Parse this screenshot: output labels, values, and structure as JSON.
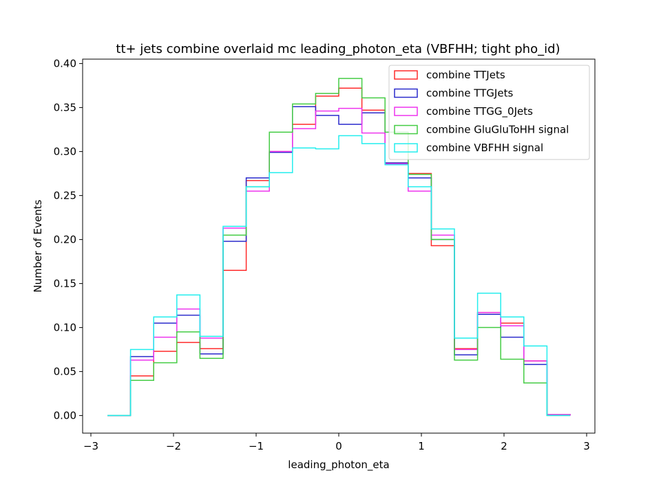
{
  "chart_data": {
    "type": "step-histogram",
    "title": "tt+ jets combine overlaid mc leading_photon_eta (VBFHH; tight pho_id)",
    "xlabel": "leading_photon_eta",
    "ylabel": "Number of Events",
    "xlim": [
      -3.1,
      3.1
    ],
    "ylim": [
      -0.02,
      0.405
    ],
    "xticks": [
      -3,
      -2,
      -1,
      0,
      1,
      2,
      3
    ],
    "xtick_labels": [
      "−3",
      "−2",
      "−1",
      "0",
      "1",
      "2",
      "3"
    ],
    "yticks": [
      0.0,
      0.05,
      0.1,
      0.15,
      0.2,
      0.25,
      0.3,
      0.35,
      0.4
    ],
    "ytick_labels": [
      "0.00",
      "0.05",
      "0.10",
      "0.15",
      "0.20",
      "0.25",
      "0.30",
      "0.35",
      "0.40"
    ],
    "grid": false,
    "legend_position": "top-right",
    "bin_edges": [
      -2.8,
      -2.52,
      -2.24,
      -1.96,
      -1.68,
      -1.4,
      -1.12,
      -0.84,
      -0.56,
      -0.28,
      0.0,
      0.28,
      0.56,
      0.84,
      1.12,
      1.4,
      1.68,
      1.96,
      2.24,
      2.52,
      2.8
    ],
    "series": [
      {
        "name": "combine TTJets",
        "color": "#ff2a2a",
        "values": [
          0.0,
          0.045,
          0.073,
          0.083,
          0.076,
          0.165,
          0.267,
          0.3,
          0.331,
          0.363,
          0.372,
          0.347,
          0.287,
          0.275,
          0.193,
          0.076,
          0.117,
          0.105,
          0.062,
          0.001
        ]
      },
      {
        "name": "combine TTGJets",
        "color": "#2a2acc",
        "values": [
          0.0,
          0.067,
          0.105,
          0.114,
          0.07,
          0.198,
          0.27,
          0.299,
          0.351,
          0.341,
          0.331,
          0.344,
          0.287,
          0.27,
          0.2,
          0.069,
          0.115,
          0.089,
          0.058,
          0.001
        ]
      },
      {
        "name": "combine TTGG_0Jets",
        "color": "#ee33ee",
        "values": [
          0.0,
          0.063,
          0.089,
          0.121,
          0.088,
          0.213,
          0.255,
          0.3,
          0.326,
          0.346,
          0.349,
          0.321,
          0.286,
          0.255,
          0.205,
          0.075,
          0.117,
          0.102,
          0.062,
          0.001
        ]
      },
      {
        "name": "combine GluGluToHH signal",
        "color": "#44cc44",
        "values": [
          0.0,
          0.04,
          0.06,
          0.095,
          0.065,
          0.205,
          0.26,
          0.322,
          0.354,
          0.366,
          0.383,
          0.361,
          0.322,
          0.274,
          0.2,
          0.063,
          0.1,
          0.064,
          0.037,
          0.0
        ]
      },
      {
        "name": "combine VBFHH signal",
        "color": "#22eeee",
        "values": [
          0.0,
          0.075,
          0.112,
          0.137,
          0.09,
          0.215,
          0.26,
          0.276,
          0.304,
          0.303,
          0.318,
          0.309,
          0.285,
          0.26,
          0.212,
          0.088,
          0.139,
          0.112,
          0.079,
          0.0
        ]
      }
    ]
  }
}
